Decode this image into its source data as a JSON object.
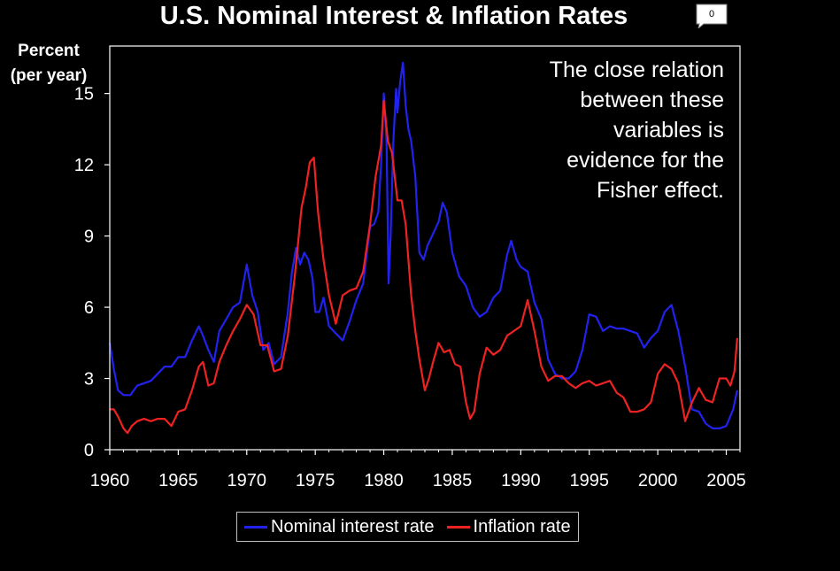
{
  "header": {
    "title": "U.S. Nominal Interest & Inflation Rates",
    "comment_count": "0"
  },
  "annotation": [
    "The close relation",
    "between these",
    "variables is",
    "evidence for the",
    "Fisher effect."
  ],
  "colors": {
    "background": "#000000",
    "nominal": "#2222ee",
    "inflation": "#ee2222",
    "axis": "#ffffff"
  },
  "chart_data": {
    "type": "line",
    "title": "U.S. Nominal Interest & Inflation Rates",
    "ylabel_lines": [
      "Percent",
      "(per year)"
    ],
    "xlabel": "",
    "xlim": [
      1960,
      2006
    ],
    "ylim": [
      0,
      17
    ],
    "x_ticks": [
      "1960",
      "1965",
      "1970",
      "1975",
      "1980",
      "1985",
      "1990",
      "1995",
      "2000",
      "2005"
    ],
    "y_ticks": [
      "0",
      "3",
      "6",
      "9",
      "12",
      "15"
    ],
    "grid": false,
    "legend_position": "bottom",
    "series": [
      {
        "name": "Nominal interest rate",
        "x": [
          1960.0,
          1960.3,
          1960.6,
          1961.0,
          1961.5,
          1962.0,
          1962.5,
          1963.0,
          1963.5,
          1964.0,
          1964.5,
          1965.0,
          1965.5,
          1966.0,
          1966.5,
          1966.8,
          1967.2,
          1967.6,
          1968.0,
          1968.5,
          1969.0,
          1969.5,
          1970.0,
          1970.4,
          1970.8,
          1971.2,
          1971.6,
          1972.0,
          1972.5,
          1973.0,
          1973.3,
          1973.6,
          1973.9,
          1974.2,
          1974.5,
          1974.8,
          1975.0,
          1975.3,
          1975.6,
          1976.0,
          1976.5,
          1977.0,
          1977.5,
          1978.0,
          1978.5,
          1979.0,
          1979.3,
          1979.6,
          1979.8,
          1980.0,
          1980.2,
          1980.35,
          1980.5,
          1980.7,
          1980.9,
          1981.0,
          1981.2,
          1981.4,
          1981.6,
          1981.8,
          1982.0,
          1982.3,
          1982.6,
          1982.9,
          1983.2,
          1983.6,
          1984.0,
          1984.3,
          1984.6,
          1985.0,
          1985.5,
          1986.0,
          1986.5,
          1987.0,
          1987.5,
          1988.0,
          1988.5,
          1989.0,
          1989.3,
          1989.7,
          1990.0,
          1990.5,
          1991.0,
          1991.5,
          1992.0,
          1992.5,
          1993.0,
          1993.5,
          1994.0,
          1994.5,
          1995.0,
          1995.5,
          1996.0,
          1996.5,
          1997.0,
          1997.5,
          1998.0,
          1998.5,
          1999.0,
          1999.5,
          2000.0,
          2000.5,
          2001.0,
          2001.5,
          2002.0,
          2002.5,
          2003.0,
          2003.5,
          2004.0,
          2004.5,
          2005.0,
          2005.5,
          2005.8
        ],
        "values": [
          4.5,
          3.4,
          2.5,
          2.3,
          2.3,
          2.7,
          2.8,
          2.9,
          3.2,
          3.5,
          3.5,
          3.9,
          3.9,
          4.6,
          5.2,
          4.8,
          4.2,
          3.7,
          5.0,
          5.5,
          6.0,
          6.2,
          7.8,
          6.5,
          5.8,
          4.2,
          4.5,
          3.6,
          3.9,
          5.8,
          7.5,
          8.5,
          7.8,
          8.3,
          8.0,
          7.2,
          5.8,
          5.8,
          6.4,
          5.2,
          4.9,
          4.6,
          5.4,
          6.3,
          7.0,
          9.4,
          9.5,
          10.0,
          12.0,
          15.0,
          13.0,
          7.0,
          9.0,
          13.0,
          15.2,
          14.2,
          15.5,
          16.3,
          14.5,
          13.5,
          13.0,
          11.5,
          8.3,
          8.0,
          8.6,
          9.1,
          9.6,
          10.4,
          10.0,
          8.3,
          7.3,
          6.9,
          6.0,
          5.6,
          5.8,
          6.4,
          6.7,
          8.2,
          8.8,
          8.0,
          7.7,
          7.5,
          6.2,
          5.5,
          3.8,
          3.2,
          3.0,
          3.0,
          3.3,
          4.2,
          5.7,
          5.6,
          5.0,
          5.2,
          5.1,
          5.1,
          5.0,
          4.9,
          4.3,
          4.7,
          5.0,
          5.8,
          6.1,
          5.0,
          3.5,
          1.7,
          1.6,
          1.1,
          0.9,
          0.9,
          1.0,
          1.7,
          2.5
        ]
      },
      {
        "name": "Inflation rate",
        "x": [
          1960.0,
          1960.3,
          1960.6,
          1961.0,
          1961.3,
          1961.6,
          1962.0,
          1962.5,
          1963.0,
          1963.5,
          1964.0,
          1964.5,
          1965.0,
          1965.5,
          1966.0,
          1966.5,
          1966.8,
          1967.2,
          1967.6,
          1968.0,
          1968.5,
          1969.0,
          1969.5,
          1970.0,
          1970.5,
          1971.0,
          1971.5,
          1972.0,
          1972.5,
          1973.0,
          1973.5,
          1974.0,
          1974.3,
          1974.6,
          1974.9,
          1975.2,
          1975.6,
          1976.0,
          1976.5,
          1977.0,
          1977.5,
          1978.0,
          1978.5,
          1979.0,
          1979.4,
          1979.8,
          1980.0,
          1980.3,
          1980.6,
          1981.0,
          1981.3,
          1981.6,
          1982.0,
          1982.3,
          1982.6,
          1983.0,
          1983.3,
          1983.6,
          1984.0,
          1984.4,
          1984.8,
          1985.2,
          1985.6,
          1986.0,
          1986.3,
          1986.6,
          1987.0,
          1987.5,
          1988.0,
          1988.5,
          1989.0,
          1989.5,
          1990.0,
          1990.5,
          1991.0,
          1991.5,
          1992.0,
          1992.5,
          1993.0,
          1993.5,
          1994.0,
          1994.5,
          1995.0,
          1995.5,
          1996.0,
          1996.5,
          1997.0,
          1997.5,
          1998.0,
          1998.5,
          1999.0,
          1999.5,
          2000.0,
          2000.5,
          2001.0,
          2001.5,
          2002.0,
          2002.5,
          2003.0,
          2003.5,
          2004.0,
          2004.5,
          2005.0,
          2005.3,
          2005.6,
          2005.8
        ],
        "values": [
          1.7,
          1.7,
          1.4,
          0.9,
          0.7,
          1.0,
          1.2,
          1.3,
          1.2,
          1.3,
          1.3,
          1.0,
          1.6,
          1.7,
          2.5,
          3.5,
          3.7,
          2.7,
          2.8,
          3.7,
          4.4,
          5.0,
          5.5,
          6.1,
          5.7,
          4.4,
          4.4,
          3.3,
          3.4,
          4.8,
          7.3,
          10.2,
          11.0,
          12.1,
          12.3,
          10.0,
          8.0,
          6.5,
          5.3,
          6.5,
          6.7,
          6.8,
          7.5,
          9.5,
          11.5,
          12.8,
          14.7,
          13.0,
          12.5,
          10.5,
          10.5,
          9.5,
          6.5,
          5.0,
          3.8,
          2.5,
          3.0,
          3.7,
          4.5,
          4.1,
          4.2,
          3.6,
          3.5,
          2.0,
          1.3,
          1.6,
          3.2,
          4.3,
          4.0,
          4.2,
          4.8,
          5.0,
          5.2,
          6.3,
          5.0,
          3.5,
          2.9,
          3.1,
          3.1,
          2.8,
          2.6,
          2.8,
          2.9,
          2.7,
          2.8,
          2.9,
          2.4,
          2.2,
          1.6,
          1.6,
          1.7,
          2.0,
          3.2,
          3.6,
          3.4,
          2.8,
          1.2,
          2.0,
          2.6,
          2.1,
          2.0,
          3.0,
          3.0,
          2.7,
          3.3,
          4.7
        ]
      }
    ]
  }
}
